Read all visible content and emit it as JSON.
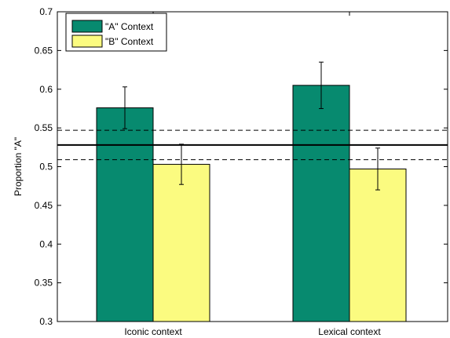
{
  "chart_data": {
    "type": "bar",
    "title": "",
    "xlabel": "",
    "ylabel": "Proportion \"A\"",
    "ylim": [
      0.3,
      0.7
    ],
    "yticks": [
      "0.3",
      "0.35",
      "0.4",
      "0.45",
      "0.5",
      "0.55",
      "0.6",
      "0.65",
      "0.7"
    ],
    "categories": [
      "Iconic context",
      "Lexical context"
    ],
    "series": [
      {
        "name": "\"A\" Context",
        "color": "#078a6f",
        "values": [
          0.576,
          0.605
        ],
        "error": [
          0.027,
          0.03
        ]
      },
      {
        "name": "\"B\" Context",
        "color": "#fbfb80",
        "values": [
          0.503,
          0.497
        ],
        "error": [
          0.026,
          0.027
        ]
      }
    ],
    "reference_line": {
      "value": 0.528,
      "style": "solid"
    },
    "reference_bounds": {
      "values": [
        0.509,
        0.547
      ],
      "style": "dashed"
    },
    "legend_position": "top-left",
    "grid": false
  }
}
